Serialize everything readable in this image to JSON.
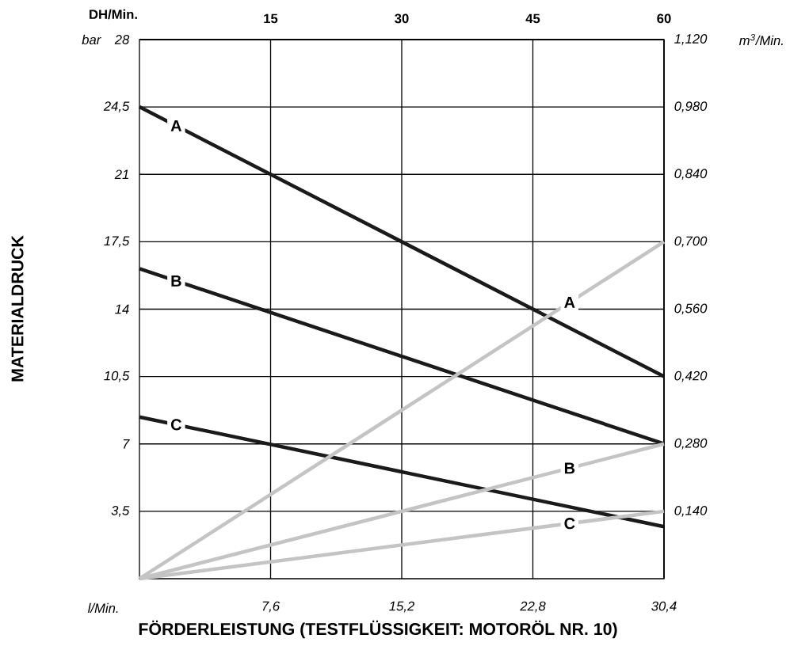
{
  "chart_data": {
    "type": "line",
    "xlabel": "FÖRDERLEISTUNG  (TESTFLÜSSIGKEIT: MOTORÖL NR. 10)",
    "x2label": "DH/Min.",
    "ylabel": "MATERIALDRUCK",
    "y2label": "m$^{3}$/Min.",
    "annotations": [
      "bar",
      "l/Min."
    ],
    "x": [
      0,
      30.4
    ],
    "xlim": [
      0,
      30.4
    ],
    "xticks": [
      {
        "value": 7.6,
        "label": "7,6"
      },
      {
        "value": 15.2,
        "label": "15,2"
      },
      {
        "value": 22.8,
        "label": "22,8"
      },
      {
        "value": 30.4,
        "label": "30,4"
      }
    ],
    "x2lim": [
      0,
      60
    ],
    "x2ticks": [
      15,
      30,
      45,
      60
    ],
    "ylim": [
      0,
      28
    ],
    "yticks": [
      {
        "value": 3.5,
        "label": "3,5"
      },
      7,
      {
        "value": 10.5,
        "label": "10,5"
      },
      14,
      {
        "value": 17.5,
        "label": "17,5"
      },
      21,
      {
        "value": 24.5,
        "label": "24,5"
      },
      28
    ],
    "y2lim": [
      0,
      1.12
    ],
    "y2ticks": [
      {
        "value": 0.14,
        "label": "0,140"
      },
      {
        "value": 0.28,
        "label": "0,280"
      },
      {
        "value": 0.42,
        "label": "0,420"
      },
      {
        "value": 0.56,
        "label": "0,560"
      },
      {
        "value": 0.7,
        "label": "0,700"
      },
      {
        "value": 0.84,
        "label": "0,840"
      },
      {
        "value": 0.98,
        "label": "0,980"
      },
      {
        "value": 1.12,
        "label": "1,120"
      }
    ],
    "grid": true,
    "series": [
      {
        "name": "A",
        "color": "#1a1a1a",
        "values": [
          24.5,
          10.5
        ]
      },
      {
        "name": "B",
        "color": "#1a1a1a",
        "values": [
          16.1,
          7
        ]
      },
      {
        "name": "C",
        "color": "#1a1a1a",
        "values": [
          8.4,
          2.7
        ]
      },
      {
        "name": "A",
        "color": "#c4c4c4",
        "axis": "y2",
        "values": [
          0,
          0.7
        ]
      },
      {
        "name": "B",
        "color": "#c4c4c4",
        "axis": "y2",
        "values": [
          0,
          0.28
        ]
      },
      {
        "name": "C",
        "color": "#c4c4c4",
        "axis": "y2",
        "values": [
          0,
          0.14
        ]
      }
    ]
  }
}
